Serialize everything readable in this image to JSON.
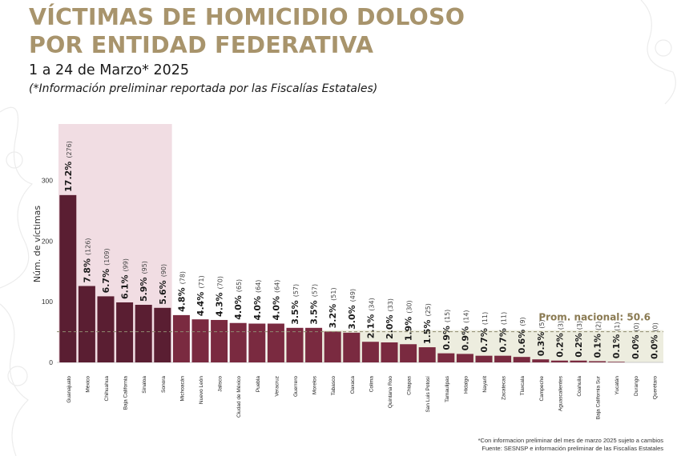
{
  "header": {
    "title_line1": "VÍCTIMAS DE HOMICIDIO DOLOSO",
    "title_line2": "POR ENTIDAD FEDERATIVA",
    "subtitle": "1 a 24 de Marzo* 2025",
    "note": "(*Información preliminar reportada por las Fiscalías Estatales)"
  },
  "footer": {
    "line1": "*Con informacion preliminar del mes de marzo 2025 sujeto a cambios",
    "line2": "Fuente: SESNSP e información preliminar de las Fiscalías Estatales"
  },
  "colors": {
    "title": "#a8946c",
    "bar_dark": "#5a1e32",
    "bar": "#7a2a40",
    "highlight_band": "#f1dde3",
    "average_band": "#ededdf",
    "average_line": "#8f8b6f"
  },
  "chart_data": {
    "type": "bar",
    "ylabel": "Núm. de víctimas",
    "ylim": [
      0,
      360
    ],
    "yticks": [
      0,
      100,
      200,
      300
    ],
    "average": {
      "label": "Prom. nacional: 50.6",
      "value": 50.6
    },
    "highlighted_top_n": 6,
    "categories": [
      "Guanajuato",
      "México",
      "Chihuahua",
      "Baja California",
      "Sinaloa",
      "Sonora",
      "Michoacán",
      "Nuevo León",
      "Jalisco",
      "Ciudad de México",
      "Puebla",
      "Veracruz",
      "Guerrero",
      "Morelos",
      "Tabasco",
      "Oaxaca",
      "Colima",
      "Quintana Roo",
      "Chiapas",
      "San Luis Potosí",
      "Tamaulipas",
      "Hidalgo",
      "Nayarit",
      "Zacatecas",
      "Tlaxcala",
      "Campeche",
      "Aguascalientes",
      "Coahuila",
      "Baja California Sur",
      "Yucatán",
      "Durango",
      "Querétaro"
    ],
    "values": [
      276,
      126,
      109,
      99,
      95,
      90,
      78,
      71,
      70,
      65,
      64,
      64,
      57,
      57,
      51,
      49,
      34,
      33,
      30,
      25,
      15,
      14,
      11,
      11,
      9,
      5,
      3,
      3,
      2,
      1,
      0,
      0
    ],
    "percent_labels": [
      "17.2%",
      "7.8%",
      "6.7%",
      "6.1%",
      "5.9%",
      "5.6%",
      "4.8%",
      "4.4%",
      "4.3%",
      "4.0%",
      "4.0%",
      "4.0%",
      "3.5%",
      "3.5%",
      "3.2%",
      "3.0%",
      "2.1%",
      "2.0%",
      "1.9%",
      "1.5%",
      "0.9%",
      "0.9%",
      "0.7%",
      "0.7%",
      "0.6%",
      "0.3%",
      "0.2%",
      "0.2%",
      "0.1%",
      "0.1%",
      "0.0%",
      "0.0%"
    ],
    "count_labels": [
      "(276)",
      "(126)",
      "(109)",
      "(99)",
      "(95)",
      "(90)",
      "(78)",
      "(71)",
      "(70)",
      "(65)",
      "(64)",
      "(64)",
      "(57)",
      "(57)",
      "(51)",
      "(49)",
      "(34)",
      "(33)",
      "(30)",
      "(25)",
      "(15)",
      "(14)",
      "(11)",
      "(11)",
      "(9)",
      "(5)",
      "(3)",
      "(3)",
      "(2)",
      "(1)",
      "(0)",
      "(0)"
    ]
  }
}
